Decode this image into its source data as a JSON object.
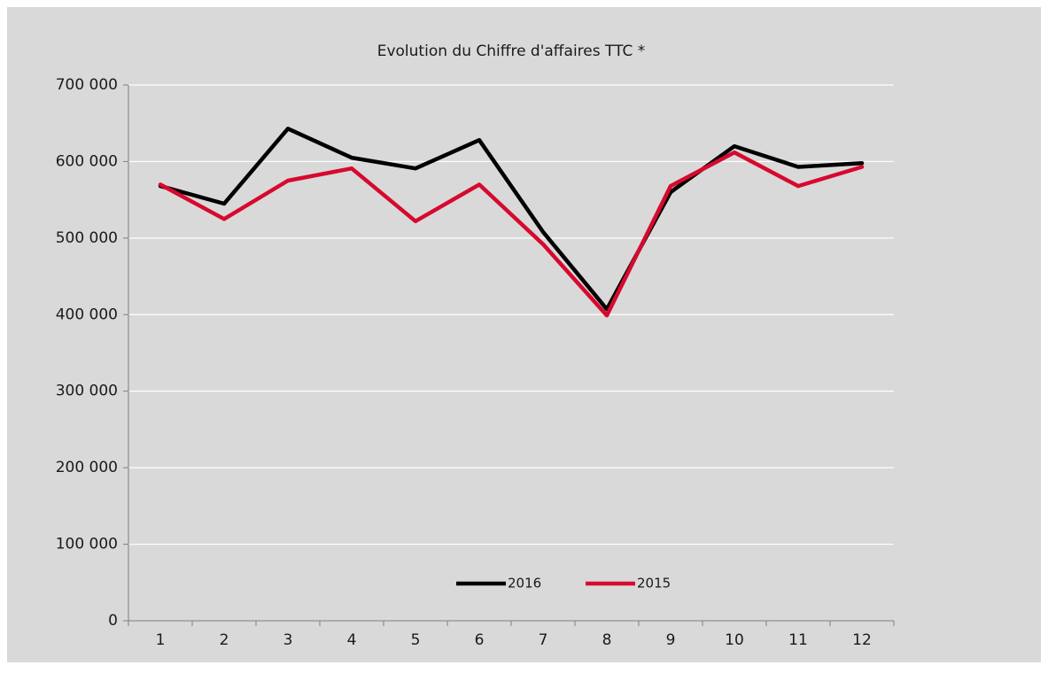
{
  "chart_data": {
    "type": "line",
    "title": "Evolution du Chiffre d'affaires TTC *",
    "categories": [
      "1",
      "2",
      "3",
      "4",
      "5",
      "6",
      "7",
      "8",
      "9",
      "10",
      "11",
      "12"
    ],
    "series": [
      {
        "name": "2016",
        "color": "#000000",
        "values": [
          568000,
          545000,
          643000,
          605000,
          591000,
          628000,
          508000,
          407000,
          560000,
          620000,
          593000,
          598000
        ]
      },
      {
        "name": "2015",
        "color": "#d7092e",
        "values": [
          570000,
          525000,
          575000,
          591000,
          522000,
          570000,
          492000,
          399000,
          568000,
          612000,
          568000,
          593000
        ]
      }
    ],
    "ylim": [
      0,
      700000
    ],
    "yticks": [
      0,
      {
        "value": 100000,
        "label": "100 000"
      },
      {
        "value": 200000,
        "label": "200 000"
      },
      {
        "value": 300000,
        "label": "300 000"
      },
      {
        "value": 400000,
        "label": "400 000"
      },
      {
        "value": 500000,
        "label": "500 000"
      },
      {
        "value": 600000,
        "label": "600 000"
      },
      {
        "value": 700000,
        "label": "700 000"
      }
    ],
    "grid": true,
    "legend": "bottom"
  }
}
